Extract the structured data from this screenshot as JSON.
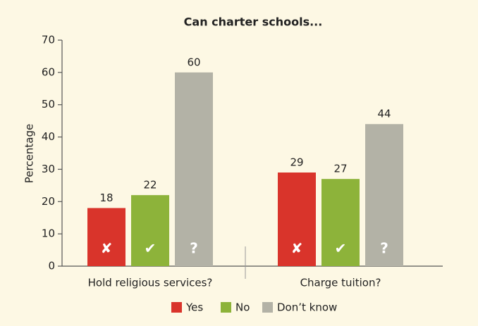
{
  "chart_data": {
    "type": "bar",
    "title": "Can charter schools...",
    "y_label": "Percentage",
    "categories": [
      "Hold religious services?",
      "Charge tuition?"
    ],
    "series": [
      {
        "name": "Yes",
        "color": "#d9342b",
        "icon": "✘",
        "values": [
          18,
          29
        ]
      },
      {
        "name": "No",
        "color": "#8db33a",
        "icon": "✔",
        "values": [
          22,
          27
        ]
      },
      {
        "name": "Don’t know",
        "color": "#b3b2a6",
        "icon": "?",
        "values": [
          60,
          44
        ]
      }
    ],
    "ylim": [
      0,
      70
    ],
    "yticks": [
      0,
      10,
      20,
      30,
      40,
      50,
      60,
      70
    ],
    "legend": "bottom"
  }
}
